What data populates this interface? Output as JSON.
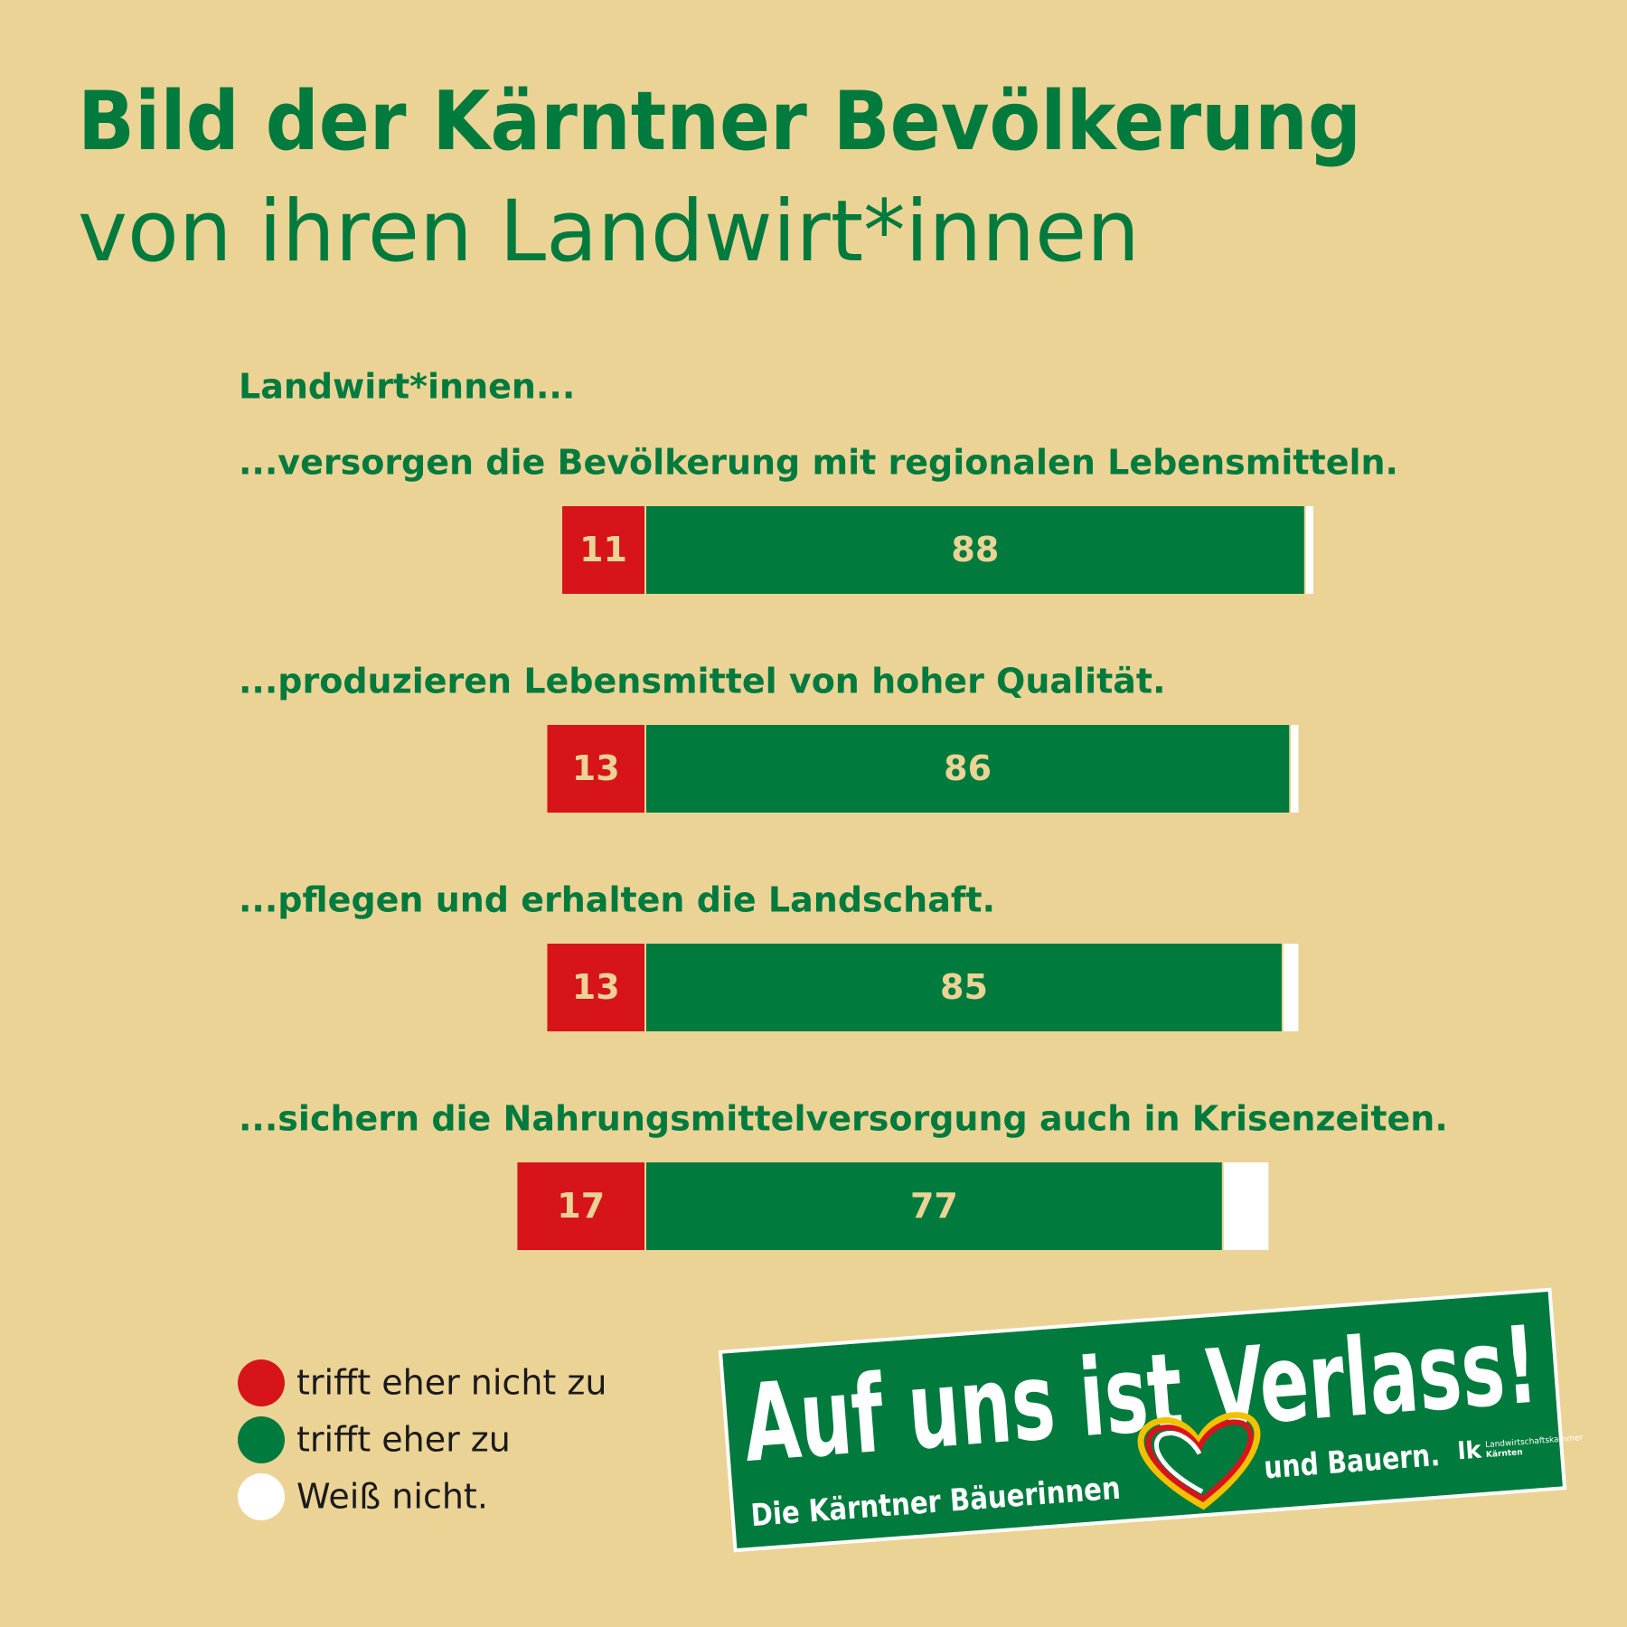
{
  "chart_data": {
    "type": "bar",
    "title": "Bild der Kärntner Bevölkerung",
    "subtitle": "von ihren Landwirt*innen",
    "group_label": "Landwirt*innen...",
    "categories": [
      "...versorgen die Bevölkerung mit regionalen Lebensmitteln.",
      "...produzieren Lebensmittel von hoher Qualität.",
      "...pflegen und erhalten die Landschaft.",
      "...sichern die Nahrungsmittelversorgung auch in Krisenzeiten."
    ],
    "series": [
      {
        "name": "trifft eher nicht zu",
        "color": "#d7141a",
        "values": [
          11,
          13,
          13,
          17
        ],
        "labeled": true
      },
      {
        "name": "trifft eher zu",
        "color": "#007a3d",
        "values": [
          88,
          86,
          85,
          77
        ],
        "labeled": true
      },
      {
        "name": "Weiß nicht.",
        "color": "#ffffff",
        "values": [
          1,
          1,
          2,
          6
        ],
        "labeled": false
      }
    ],
    "stacked": true,
    "legend": "bottom-left"
  },
  "badge": {
    "headline": "Auf uns ist Verlass!",
    "line_left": "Die Kärntner Bäuerinnen",
    "line_right": "und Bauern.",
    "logo": "lk",
    "logo_text": [
      "Landwirtschaftskammer",
      "Kärnten"
    ]
  }
}
